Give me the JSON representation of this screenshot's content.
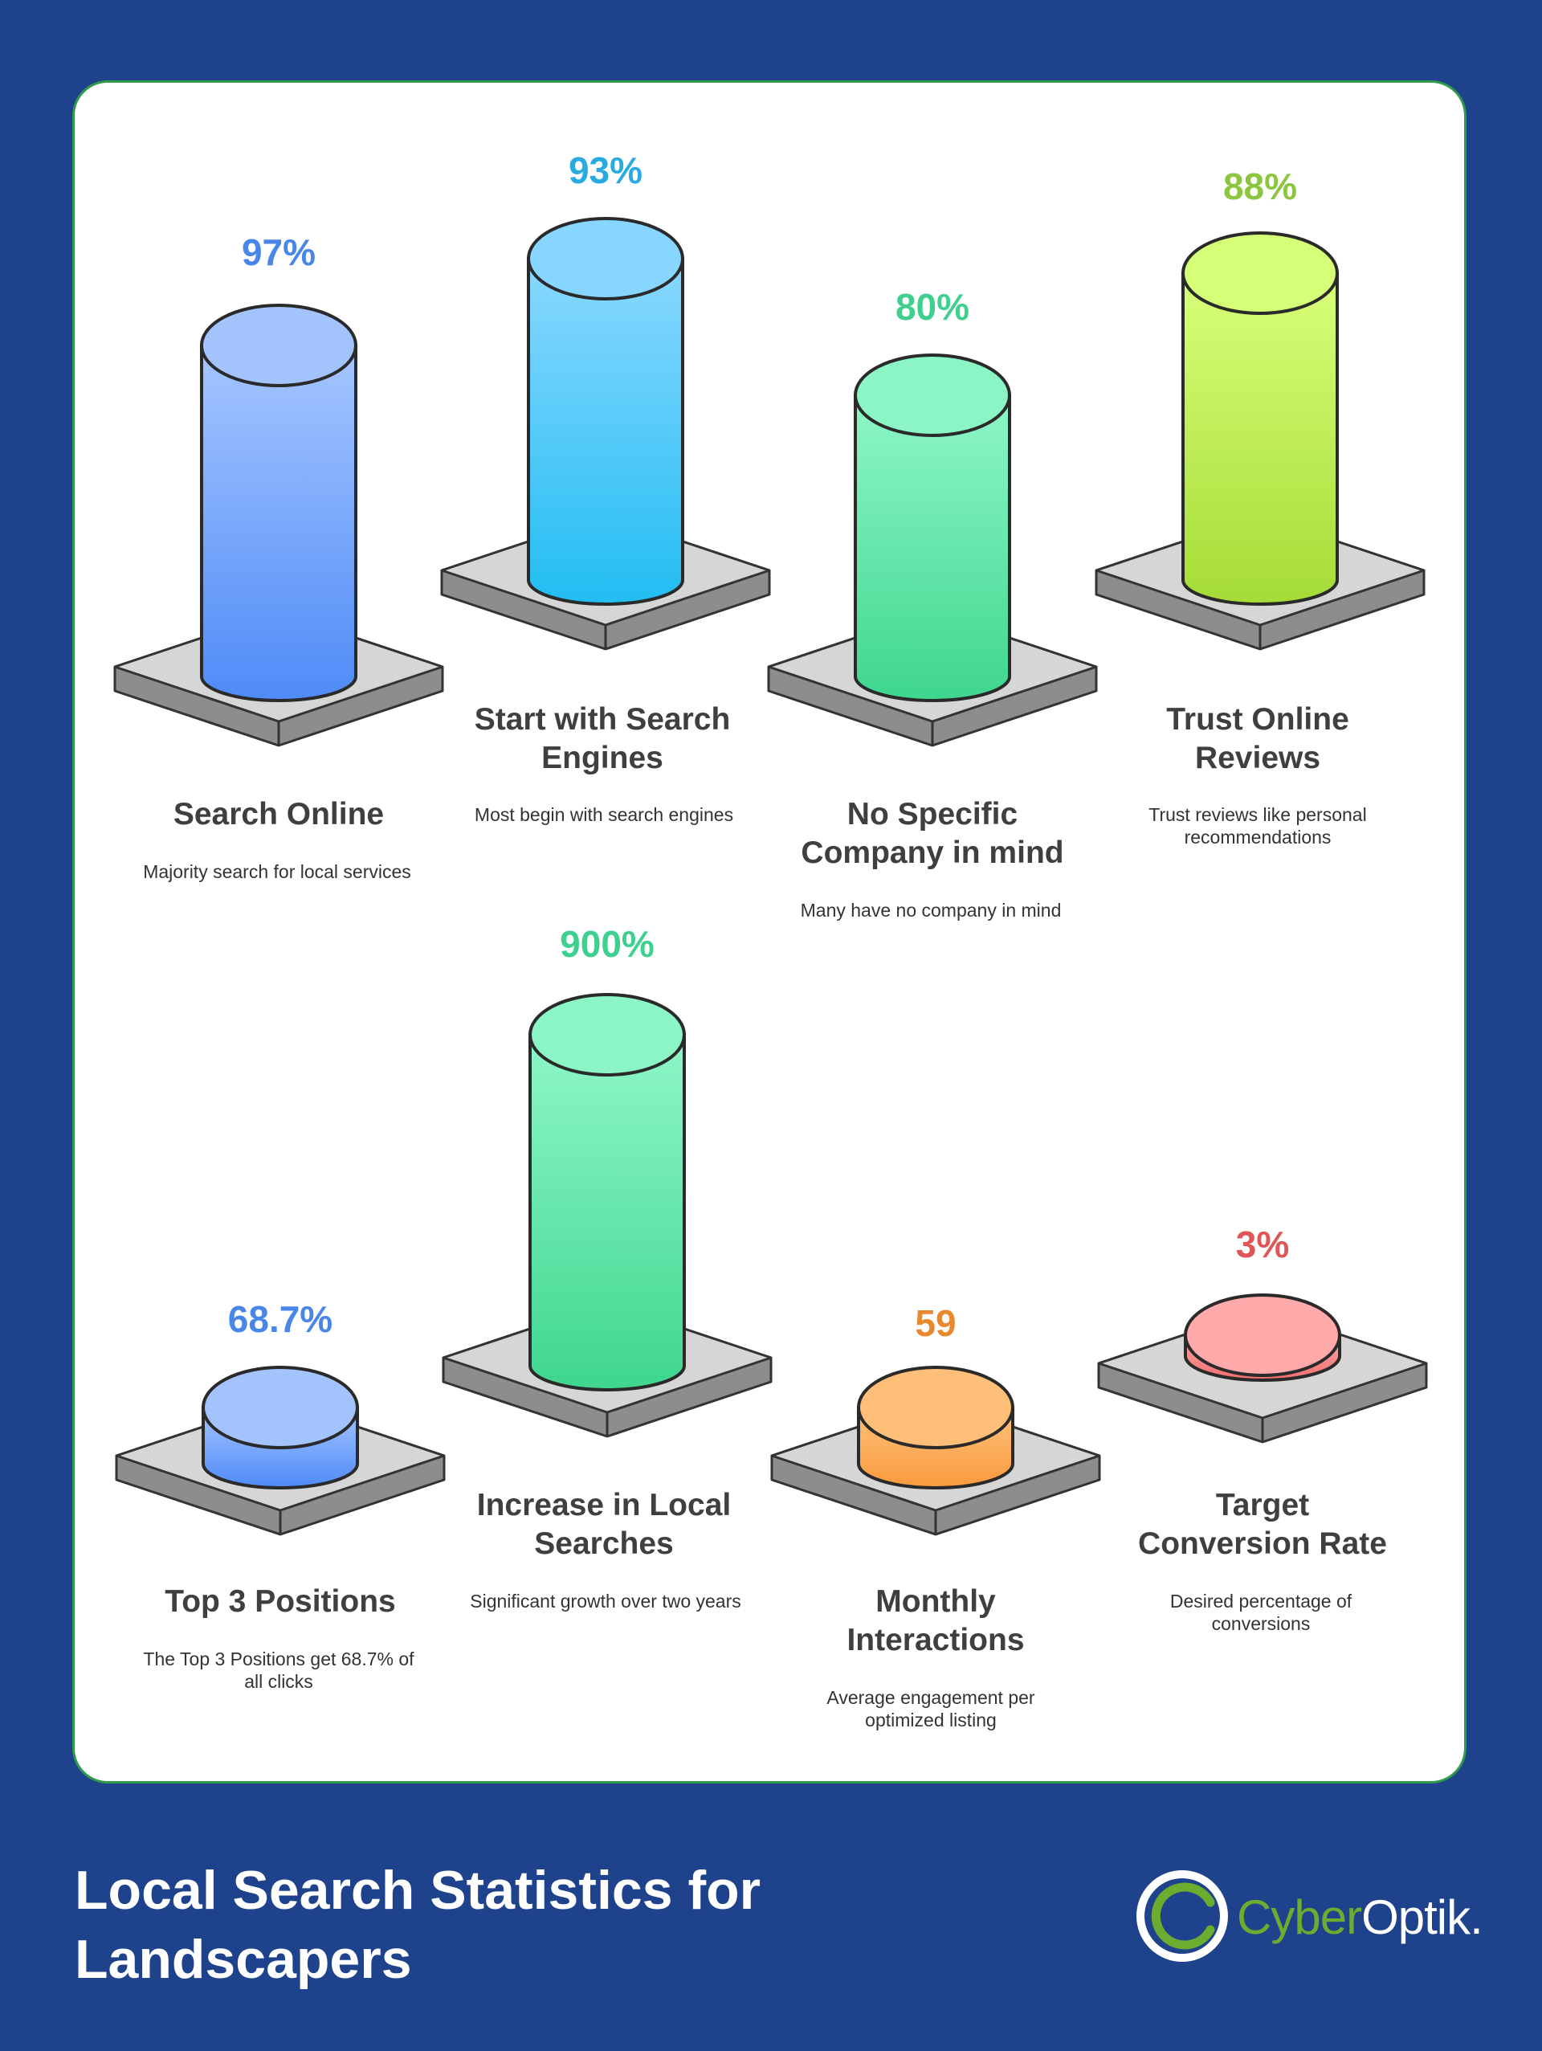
{
  "title": "Local Search Statistics for Landscapers",
  "brand": {
    "name_part1": "Cyber",
    "name_part2": "Optik.",
    "icon": "ring-logo-icon",
    "colors": {
      "green": "#6aad2f",
      "white": "#ffffff"
    }
  },
  "colors": {
    "background": "#1f428c",
    "card": "#ffffff",
    "card_border": "#2e9a4a"
  },
  "stats": [
    {
      "value": "97%",
      "title": "Search Online",
      "description": "Majority search for local services",
      "color": "#4a86e8",
      "level": 0.97
    },
    {
      "value": "93%",
      "title": "Start with Search Engines",
      "description": "Most begin with search engines",
      "color": "#29abe2",
      "level": 0.93
    },
    {
      "value": "80%",
      "title": "No Specific Company in mind",
      "description": "Many have no company in mind",
      "color": "#3fcf8e",
      "level": 0.8
    },
    {
      "value": "88%",
      "title": "Trust Online Reviews",
      "description": "Trust reviews like personal recommendations",
      "color": "#8cc63f",
      "level": 0.88
    },
    {
      "value": "68.7%",
      "title": "Top 3 Positions",
      "description": "The Top 3 Positions get 68.7% of all clicks",
      "color": "#4a86e8",
      "level": 0.687
    },
    {
      "value": "900%",
      "title": "Increase in Local Searches",
      "description": "Significant growth over two years",
      "color": "#3fcf8e",
      "level": 9.0
    },
    {
      "value": "59",
      "title": "Monthly Interactions",
      "description": "Average engagement per optimized listing",
      "color": "#e8892e",
      "level": 59
    },
    {
      "value": "3%",
      "title": "Target Conversion Rate",
      "description": "Desired percentage of conversions",
      "color": "#e05555",
      "level": 0.03
    }
  ]
}
